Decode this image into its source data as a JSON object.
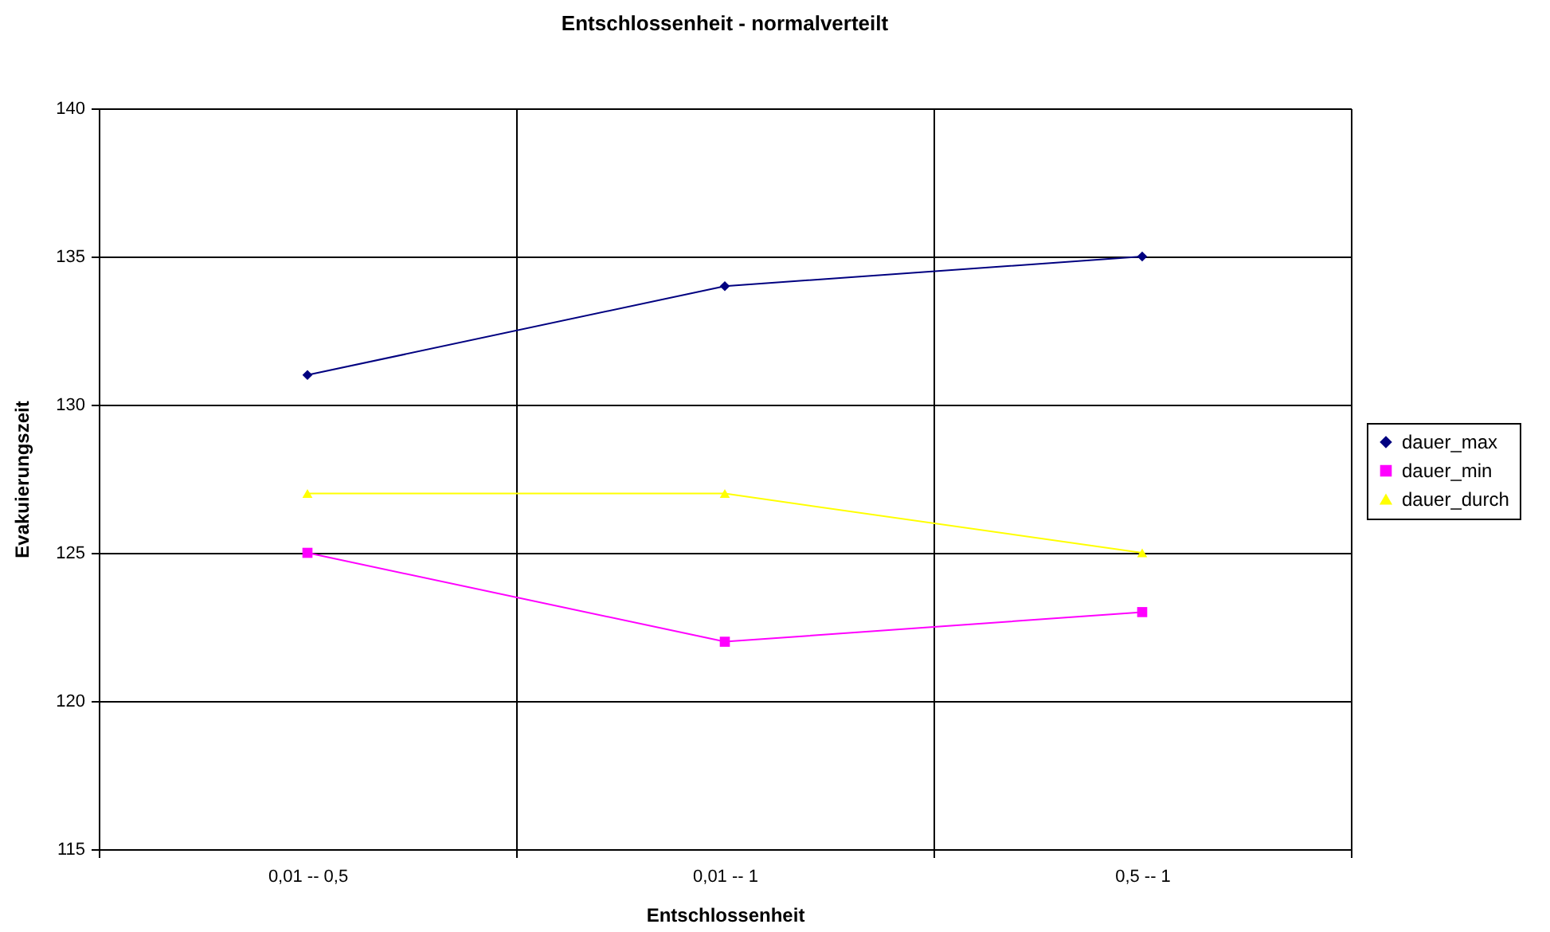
{
  "chart_data": {
    "type": "line",
    "title": "Entschlossenheit - normalverteilt",
    "xlabel": "Entschlossenheit",
    "ylabel": "Evakuierungszeit",
    "categories": [
      "0,01 -- 0,5",
      "0,01 -- 1",
      "0,5 -- 1"
    ],
    "series": [
      {
        "name": "dauer_max",
        "color": "#000080",
        "marker": "diamond",
        "values": [
          131,
          134,
          135
        ]
      },
      {
        "name": "dauer_min",
        "color": "#ff00ff",
        "marker": "square",
        "values": [
          125,
          122,
          123
        ]
      },
      {
        "name": "dauer_durch",
        "color": "#ffff00",
        "marker": "triangle",
        "values": [
          127,
          127,
          125
        ]
      }
    ],
    "ylim": [
      115,
      140
    ],
    "yticks": [
      115,
      120,
      125,
      130,
      135,
      140
    ],
    "grid": true,
    "legend": "right",
    "line_style": "solid"
  }
}
